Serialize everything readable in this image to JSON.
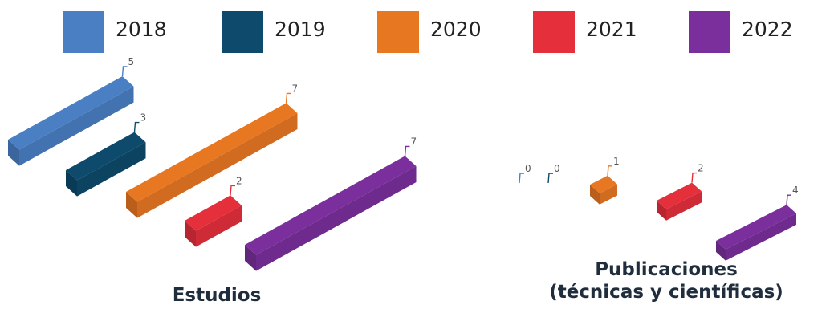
{
  "chart_data": {
    "type": "bar",
    "style": "3d-isometric",
    "title": "",
    "categories": [
      "Estudios",
      "Publicaciones (técnicas y científicas)"
    ],
    "category_title_lines": [
      [
        "Estudios"
      ],
      [
        "Publicaciones",
        "(técnicas y científicas)"
      ]
    ],
    "series": [
      {
        "name": "2018",
        "color": "#4a7fc4",
        "values": [
          5,
          0
        ]
      },
      {
        "name": "2019",
        "color": "#0d4a6b",
        "values": [
          3,
          0
        ]
      },
      {
        "name": "2020",
        "color": "#e87722",
        "values": [
          7,
          1
        ]
      },
      {
        "name": "2021",
        "color": "#e5303c",
        "values": [
          2,
          2
        ]
      },
      {
        "name": "2022",
        "color": "#7a2f9c",
        "values": [
          7,
          4
        ]
      }
    ],
    "data_labels": true,
    "legend_position": "top",
    "grid": false,
    "xlabel": "",
    "ylabel": ""
  }
}
